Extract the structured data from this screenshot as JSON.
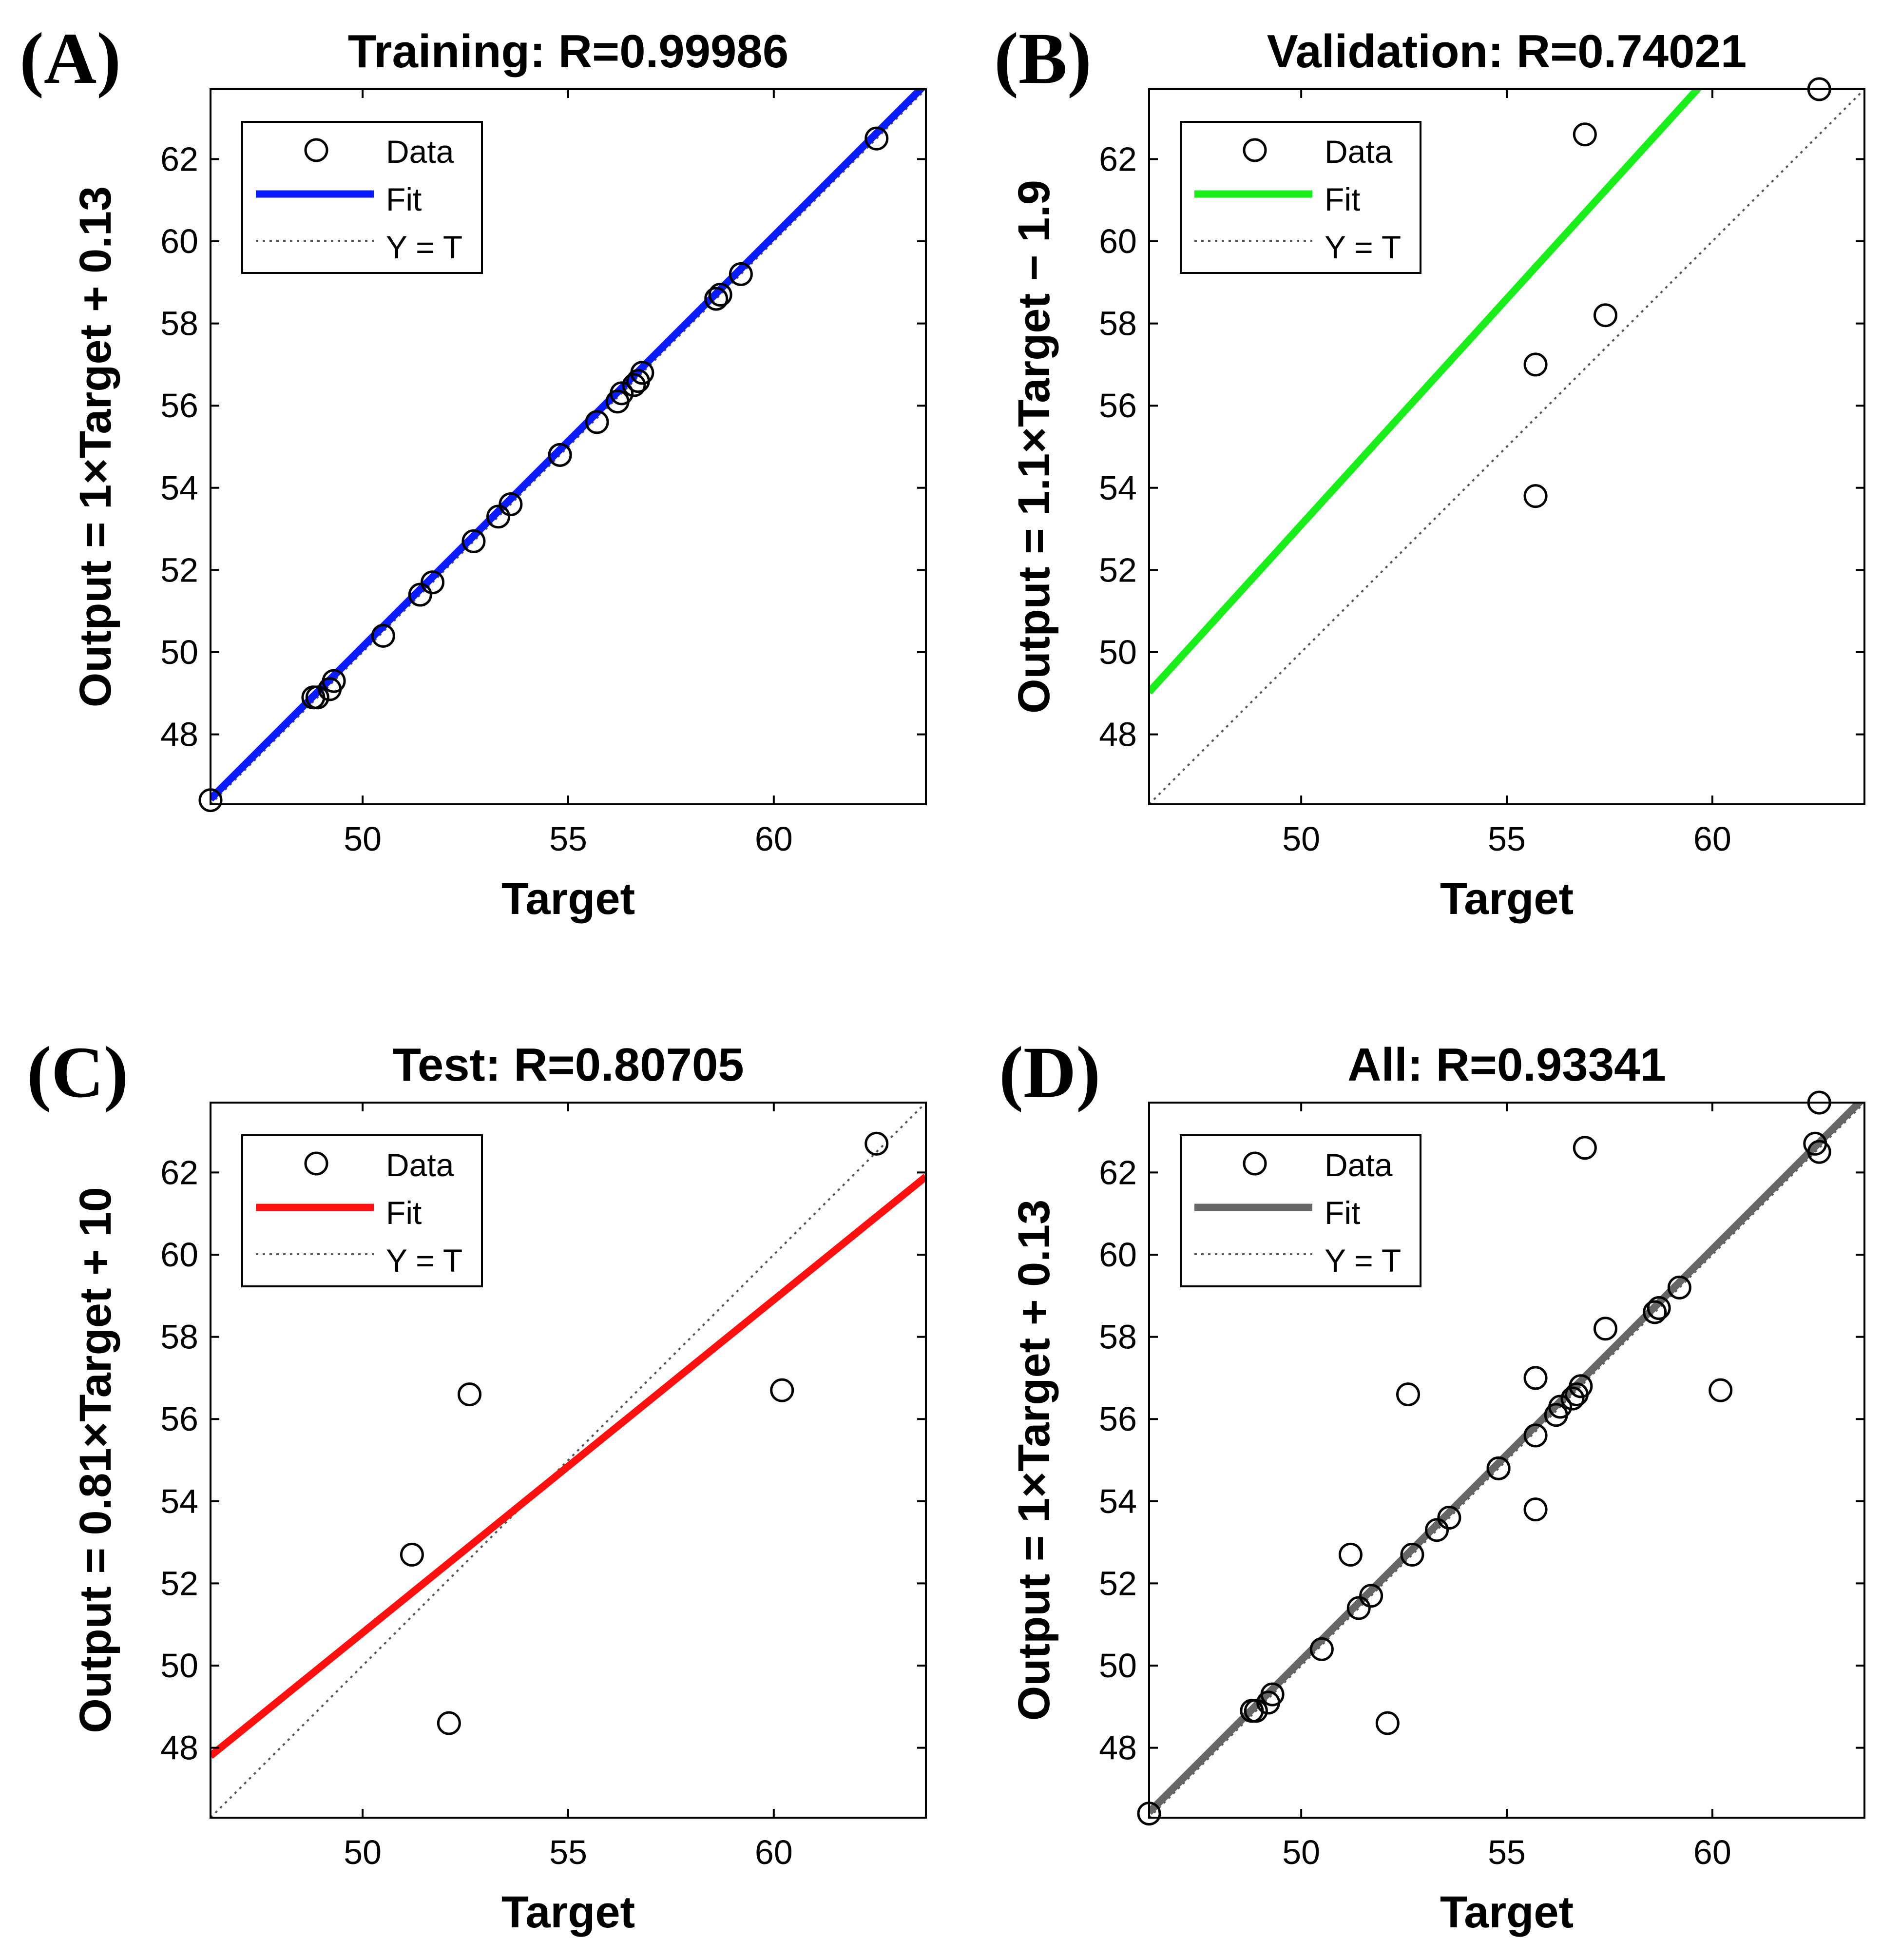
{
  "chart_data": [
    {
      "panel": "(A)",
      "type": "scatter",
      "title": "Training: R=0.99986",
      "xlabel": "Target",
      "ylabel": "Output = 1×Target + 0.13",
      "xlim": [
        46.3,
        63.7
      ],
      "ylim": [
        46.3,
        63.7
      ],
      "xticks": [
        50,
        55,
        60
      ],
      "yticks": [
        48,
        50,
        52,
        54,
        56,
        58,
        60,
        62
      ],
      "fit": {
        "slope": 1.0,
        "intercept": 0.13,
        "color": "#0a1cff"
      },
      "series": [
        {
          "name": "Data",
          "x": [
            46.3,
            48.8,
            48.9,
            49.2,
            49.3,
            50.5,
            51.4,
            51.7,
            52.7,
            53.3,
            53.6,
            54.8,
            54.8,
            55.7,
            56.2,
            56.3,
            56.6,
            56.7,
            56.8,
            58.6,
            58.7,
            59.2,
            62.5
          ],
          "y": [
            46.4,
            48.9,
            48.9,
            49.1,
            49.3,
            50.4,
            51.4,
            51.7,
            52.7,
            53.3,
            53.6,
            54.8,
            54.8,
            55.6,
            56.1,
            56.3,
            56.5,
            56.6,
            56.8,
            58.6,
            58.7,
            59.2,
            62.5
          ]
        }
      ],
      "legend": {
        "position": "top-left",
        "entries": [
          "Data",
          "Fit",
          "Y = T"
        ]
      }
    },
    {
      "panel": "(B)",
      "type": "scatter",
      "title": "Validation: R=0.74021",
      "xlabel": "Target",
      "ylabel": "Output = 1.1×Target − 1.9",
      "xlim": [
        46.3,
        63.7
      ],
      "ylim": [
        46.3,
        63.7
      ],
      "xticks": [
        50,
        55,
        60
      ],
      "yticks": [
        48,
        50,
        52,
        54,
        56,
        58,
        60,
        62
      ],
      "fit": {
        "slope": 1.1,
        "intercept": -1.9,
        "color": "#1aee1a"
      },
      "series": [
        {
          "name": "Data",
          "x": [
            55.7,
            55.7,
            56.9,
            57.4,
            62.6
          ],
          "y": [
            57.0,
            53.8,
            62.6,
            58.2,
            63.7
          ]
        }
      ],
      "legend": {
        "position": "top-left",
        "entries": [
          "Data",
          "Fit",
          "Y = T"
        ]
      }
    },
    {
      "panel": "(C)",
      "type": "scatter",
      "title": "Test: R=0.80705",
      "xlabel": "Target",
      "ylabel": "Output = 0.81×Target + 10",
      "xlim": [
        46.3,
        63.7
      ],
      "ylim": [
        46.3,
        63.7
      ],
      "xticks": [
        50,
        55,
        60
      ],
      "yticks": [
        48,
        50,
        52,
        54,
        56,
        58,
        60,
        62
      ],
      "fit": {
        "slope": 0.81,
        "intercept": 10.3,
        "color": "#ff1010"
      },
      "series": [
        {
          "name": "Data",
          "x": [
            51.2,
            52.1,
            52.6,
            60.2,
            62.5
          ],
          "y": [
            52.7,
            48.6,
            56.6,
            56.7,
            62.7
          ]
        }
      ],
      "legend": {
        "position": "top-left",
        "entries": [
          "Data",
          "Fit",
          "Y = T"
        ]
      }
    },
    {
      "panel": "(D)",
      "type": "scatter",
      "title": "All: R=0.93341",
      "xlabel": "Target",
      "ylabel": "Output = 1×Target + 0.13",
      "xlim": [
        46.3,
        63.7
      ],
      "ylim": [
        46.3,
        63.7
      ],
      "xticks": [
        50,
        55,
        60
      ],
      "yticks": [
        48,
        50,
        52,
        54,
        56,
        58,
        60,
        62
      ],
      "fit": {
        "slope": 1.0,
        "intercept": 0.13,
        "color": "#666666"
      },
      "series": [
        {
          "name": "Data",
          "x": [
            46.3,
            48.8,
            48.9,
            49.2,
            49.3,
            50.5,
            51.2,
            51.4,
            51.7,
            52.1,
            52.6,
            52.7,
            53.3,
            53.6,
            54.8,
            54.8,
            55.7,
            55.7,
            55.7,
            56.2,
            56.3,
            56.6,
            56.7,
            56.8,
            56.9,
            57.4,
            58.6,
            58.7,
            59.2,
            60.2,
            62.5,
            62.6,
            62.6
          ],
          "y": [
            46.4,
            48.9,
            48.9,
            49.1,
            49.3,
            50.4,
            52.7,
            51.4,
            51.7,
            48.6,
            56.6,
            52.7,
            53.3,
            53.6,
            54.8,
            54.8,
            55.6,
            57.0,
            53.8,
            56.1,
            56.3,
            56.5,
            56.6,
            56.8,
            62.6,
            58.2,
            58.6,
            58.7,
            59.2,
            56.7,
            62.7,
            62.5,
            63.7
          ]
        }
      ],
      "legend": {
        "position": "top-left",
        "entries": [
          "Data",
          "Fit",
          "Y = T"
        ]
      }
    }
  ]
}
